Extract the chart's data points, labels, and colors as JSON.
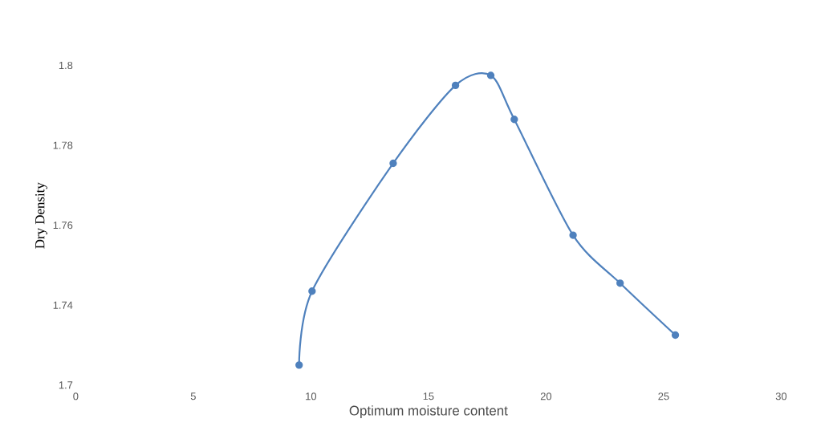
{
  "chart_data": {
    "type": "line",
    "xlabel": "Optimum moisture content",
    "ylabel": "Dry Density",
    "x": [
      9.5,
      10.05,
      13.5,
      16.15,
      17.65,
      18.65,
      21.15,
      23.15,
      25.5
    ],
    "series": [
      {
        "color": "#4f81bd",
        "values": [
          1.725,
          1.7435,
          1.7755,
          1.795,
          1.7975,
          1.7865,
          1.7575,
          1.7455,
          1.7325
        ]
      }
    ],
    "xlim": [
      0,
      30
    ],
    "xticks": [
      0,
      5,
      10,
      15,
      20,
      25,
      30
    ],
    "ylim": [
      1.72,
      1.8
    ],
    "yticks": [
      {
        "value": 1.72,
        "label": "1.7"
      },
      1.74,
      1.76,
      1.78,
      1.8
    ],
    "marker": "circle",
    "grid": false
  }
}
